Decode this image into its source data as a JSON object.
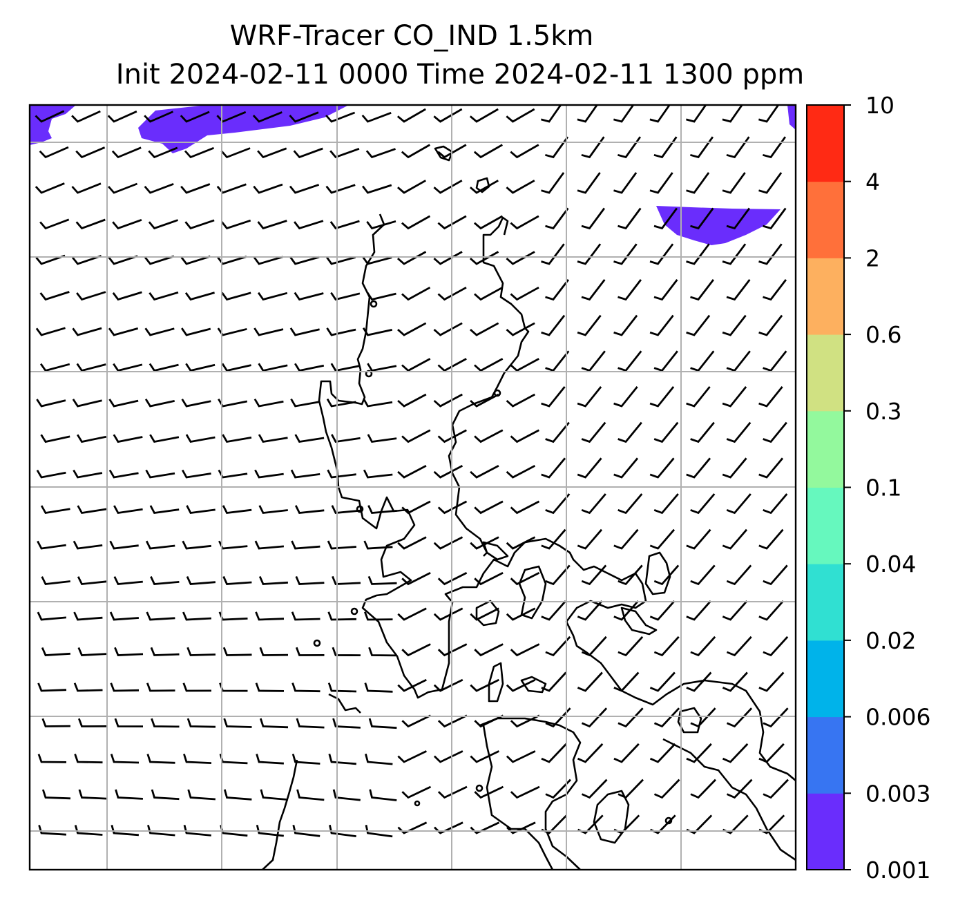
{
  "title": {
    "line1": "WRF-Tracer CO_IND 1.5km",
    "line2": "Init 2024-02-11 0000 Time 2024-02-11 1300 ppm"
  },
  "colorbar": {
    "levels": [
      "0.001",
      "0.003",
      "0.006",
      "0.02",
      "0.04",
      "0.1",
      "0.3",
      "0.6",
      "2",
      "4",
      "10"
    ],
    "colors": [
      "#6a2dfc",
      "#3775f2",
      "#00b3ea",
      "#30e0d2",
      "#66f8be",
      "#93f99d",
      "#d0e182",
      "#fdb05f",
      "#ff703a",
      "#ff2a14"
    ]
  },
  "map": {
    "plume_color": "#6a2dfc",
    "coastline_color": "#000000",
    "grid_color": "#b0b0b0",
    "barb_color": "#000000"
  }
}
